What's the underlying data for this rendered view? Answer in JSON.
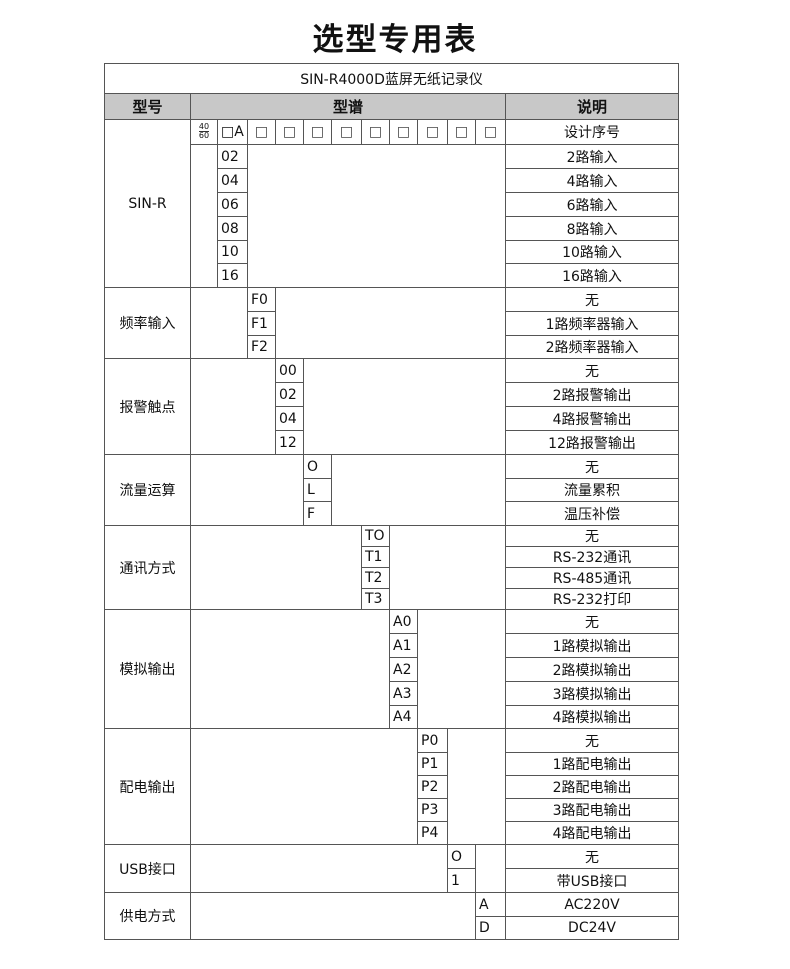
{
  "page_title": "选型专用表",
  "table_title": "SIN-R4000D蓝屏无纸记录仪",
  "headers": {
    "type": "型号",
    "code": "型谱",
    "desc": "说明"
  },
  "design_row": {
    "frac_top": "40",
    "frac_bottom": "60",
    "first": "□A",
    "boxes": [
      "□",
      "□",
      "□",
      "□",
      "□",
      "□",
      "□",
      "□",
      "□"
    ],
    "desc": "设计序号"
  },
  "groups": [
    {
      "label": "SIN-R",
      "rows": [
        {
          "code": "02",
          "desc": "2路输入"
        },
        {
          "code": "04",
          "desc": "4路输入"
        },
        {
          "code": "06",
          "desc": "6路输入"
        },
        {
          "code": "08",
          "desc": "8路输入"
        },
        {
          "code": "10",
          "desc": "10路输入"
        },
        {
          "code": "16",
          "desc": "16路输入"
        }
      ]
    },
    {
      "label": "频率输入",
      "rows": [
        {
          "code": "F0",
          "desc": "无"
        },
        {
          "code": "F1",
          "desc": "1路频率器输入"
        },
        {
          "code": "F2",
          "desc": "2路频率器输入"
        }
      ]
    },
    {
      "label": "报警触点",
      "rows": [
        {
          "code": "00",
          "desc": "无"
        },
        {
          "code": "02",
          "desc": "2路报警输出"
        },
        {
          "code": "04",
          "desc": "4路报警输出"
        },
        {
          "code": "12",
          "desc": "12路报警输出"
        }
      ]
    },
    {
      "label": "流量运算",
      "rows": [
        {
          "code": "O",
          "desc": "无"
        },
        {
          "code": "L",
          "desc": "流量累积"
        },
        {
          "code": "F",
          "desc": "温压补偿"
        }
      ]
    },
    {
      "label": "通讯方式",
      "rows": [
        {
          "code": "TO",
          "desc": "无"
        },
        {
          "code": "T1",
          "desc": "RS-232通讯"
        },
        {
          "code": "T2",
          "desc": "RS-485通讯"
        },
        {
          "code": "T3",
          "desc": "RS-232打印"
        }
      ]
    },
    {
      "label": "模拟输出",
      "rows": [
        {
          "code": "A0",
          "desc": "无"
        },
        {
          "code": "A1",
          "desc": "1路模拟输出"
        },
        {
          "code": "A2",
          "desc": "2路模拟输出"
        },
        {
          "code": "A3",
          "desc": "3路模拟输出"
        },
        {
          "code": "A4",
          "desc": "4路模拟输出"
        }
      ]
    },
    {
      "label": "配电输出",
      "rows": [
        {
          "code": "P0",
          "desc": "无"
        },
        {
          "code": "P1",
          "desc": "1路配电输出"
        },
        {
          "code": "P2",
          "desc": "2路配电输出"
        },
        {
          "code": "P3",
          "desc": "3路配电输出"
        },
        {
          "code": "P4",
          "desc": "4路配电输出"
        }
      ]
    },
    {
      "label": "USB接口",
      "rows": [
        {
          "code": "O",
          "desc": "无"
        },
        {
          "code": "1",
          "desc": "带USB接口"
        }
      ]
    },
    {
      "label": "供电方式",
      "rows": [
        {
          "code": "A",
          "desc": "AC220V"
        },
        {
          "code": "D",
          "desc": "DC24V"
        }
      ]
    }
  ]
}
